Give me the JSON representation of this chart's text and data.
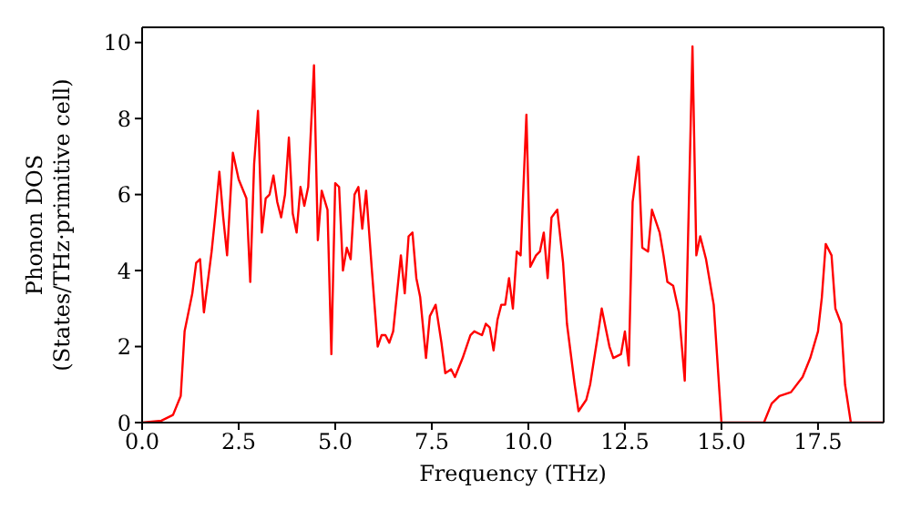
{
  "chart_data": {
    "type": "line",
    "xlabel": "Frequency (THz)",
    "ylabel": "Phonon DOS\n(States/THz·primitive cell)",
    "xlim": [
      0,
      19.2
    ],
    "xticks": [
      {
        "value": 0,
        "label": "0.0"
      },
      2.5,
      {
        "value": 5,
        "label": "5.0"
      },
      7.5,
      {
        "value": 10,
        "label": "10.0"
      },
      12.5,
      {
        "value": 15,
        "label": "15.0"
      },
      17.5
    ],
    "ylim": [
      0,
      10.4
    ],
    "yticks": [
      0,
      2,
      4,
      6,
      8,
      10
    ],
    "grid": false,
    "legend": false,
    "marker": "none",
    "line_style": "solid",
    "x": [
      0,
      0.5,
      0.8,
      1.0,
      1.1,
      1.3,
      1.4,
      1.5,
      1.6,
      1.8,
      1.9,
      2.0,
      2.1,
      2.2,
      2.3,
      2.35,
      2.5,
      2.7,
      2.8,
      2.9,
      3.0,
      3.1,
      3.2,
      3.3,
      3.4,
      3.5,
      3.6,
      3.7,
      3.8,
      3.9,
      4.0,
      4.1,
      4.2,
      4.3,
      4.45,
      4.55,
      4.65,
      4.8,
      4.9,
      5.0,
      5.1,
      5.2,
      5.3,
      5.4,
      5.5,
      5.6,
      5.7,
      5.8,
      5.95,
      6.1,
      6.2,
      6.3,
      6.4,
      6.5,
      6.7,
      6.8,
      6.9,
      7.0,
      7.1,
      7.2,
      7.35,
      7.45,
      7.6,
      7.75,
      7.85,
      8.0,
      8.1,
      8.3,
      8.5,
      8.6,
      8.8,
      8.9,
      9.0,
      9.1,
      9.2,
      9.3,
      9.4,
      9.5,
      9.6,
      9.7,
      9.8,
      9.95,
      10.05,
      10.2,
      10.3,
      10.4,
      10.5,
      10.6,
      10.75,
      10.9,
      11.0,
      11.2,
      11.3,
      11.5,
      11.6,
      11.8,
      11.9,
      12.0,
      12.1,
      12.2,
      12.4,
      12.5,
      12.6,
      12.7,
      12.85,
      12.95,
      13.1,
      13.2,
      13.4,
      13.5,
      13.6,
      13.75,
      13.9,
      14.05,
      14.25,
      14.35,
      14.45,
      14.6,
      14.8,
      15.0,
      16.1,
      16.3,
      16.5,
      16.8,
      17.1,
      17.3,
      17.5,
      17.6,
      17.7,
      17.85,
      17.95,
      18.1,
      18.2,
      18.35,
      19.2
    ],
    "series": [
      {
        "color": "#ff0000",
        "values": [
          0,
          0.05,
          0.2,
          0.7,
          2.4,
          3.4,
          4.2,
          4.3,
          2.9,
          4.5,
          5.5,
          6.6,
          5.4,
          4.4,
          6.2,
          7.1,
          6.4,
          5.9,
          3.7,
          6.8,
          8.2,
          5.0,
          5.9,
          6.0,
          6.5,
          5.8,
          5.4,
          6.0,
          7.5,
          5.5,
          5.0,
          6.2,
          5.7,
          6.2,
          9.4,
          4.8,
          6.1,
          5.6,
          1.8,
          6.3,
          6.2,
          4.0,
          4.6,
          4.3,
          6.0,
          6.2,
          5.1,
          6.1,
          4.0,
          2.0,
          2.3,
          2.3,
          2.1,
          2.4,
          4.4,
          3.4,
          4.9,
          5.0,
          3.8,
          3.3,
          1.7,
          2.8,
          3.1,
          2.1,
          1.3,
          1.4,
          1.2,
          1.7,
          2.3,
          2.4,
          2.3,
          2.6,
          2.5,
          1.9,
          2.7,
          3.1,
          3.1,
          3.8,
          3.0,
          4.5,
          4.4,
          8.1,
          4.1,
          4.4,
          4.5,
          5.0,
          3.8,
          5.4,
          5.6,
          4.2,
          2.6,
          1.0,
          0.3,
          0.6,
          1.0,
          2.3,
          3.0,
          2.5,
          2.0,
          1.7,
          1.8,
          2.4,
          1.5,
          5.8,
          7.0,
          4.6,
          4.5,
          5.6,
          5.0,
          4.4,
          3.7,
          3.6,
          2.9,
          1.1,
          9.9,
          4.4,
          4.9,
          4.3,
          3.1,
          0,
          0,
          0.5,
          0.7,
          0.8,
          1.2,
          1.7,
          2.4,
          3.3,
          4.7,
          4.4,
          3.0,
          2.6,
          1.0,
          0,
          0
        ]
      }
    ]
  }
}
